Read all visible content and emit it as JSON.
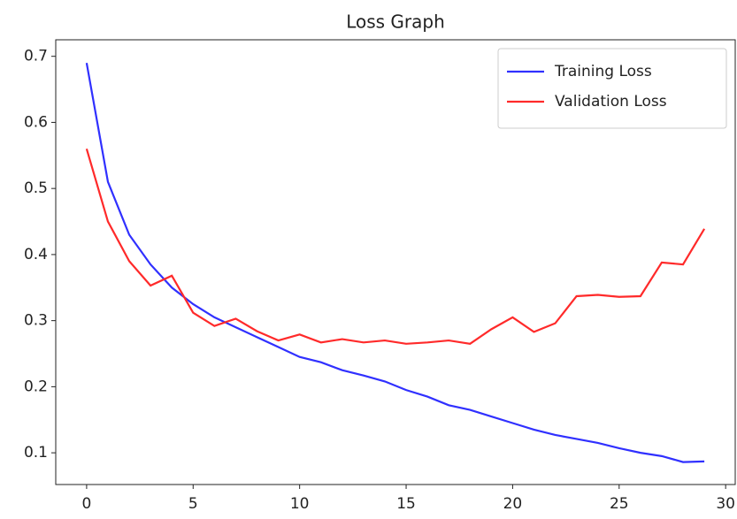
{
  "chart_data": {
    "type": "line",
    "title": "Loss Graph",
    "x": [
      0,
      1,
      2,
      3,
      4,
      5,
      6,
      7,
      8,
      9,
      10,
      11,
      12,
      13,
      14,
      15,
      16,
      17,
      18,
      19,
      20,
      21,
      22,
      23,
      24,
      25,
      26,
      27,
      28,
      29
    ],
    "series": [
      {
        "name": "Training Loss",
        "color": "#3030ff",
        "values": [
          0.69,
          0.51,
          0.43,
          0.385,
          0.35,
          0.325,
          0.305,
          0.29,
          0.275,
          0.26,
          0.245,
          0.237,
          0.225,
          0.217,
          0.208,
          0.195,
          0.185,
          0.172,
          0.165,
          0.155,
          0.145,
          0.135,
          0.127,
          0.121,
          0.115,
          0.107,
          0.1,
          0.095,
          0.086,
          0.087
        ]
      },
      {
        "name": "Validation Loss",
        "color": "#ff2a2a",
        "values": [
          0.56,
          0.45,
          0.39,
          0.353,
          0.368,
          0.312,
          0.292,
          0.303,
          0.284,
          0.27,
          0.279,
          0.267,
          0.272,
          0.267,
          0.27,
          0.265,
          0.267,
          0.27,
          0.265,
          0.287,
          0.305,
          0.283,
          0.296,
          0.337,
          0.339,
          0.336,
          0.337,
          0.388,
          0.385,
          0.439
        ]
      }
    ],
    "xlim": [
      -1.45,
      30.45
    ],
    "xticks": [
      0,
      5,
      10,
      15,
      20,
      25,
      30
    ],
    "ylim": [
      0.052,
      0.725
    ],
    "yticks": [
      0.1,
      0.2,
      0.3,
      0.4,
      0.5,
      0.6,
      0.7
    ],
    "legend": "upper right"
  }
}
